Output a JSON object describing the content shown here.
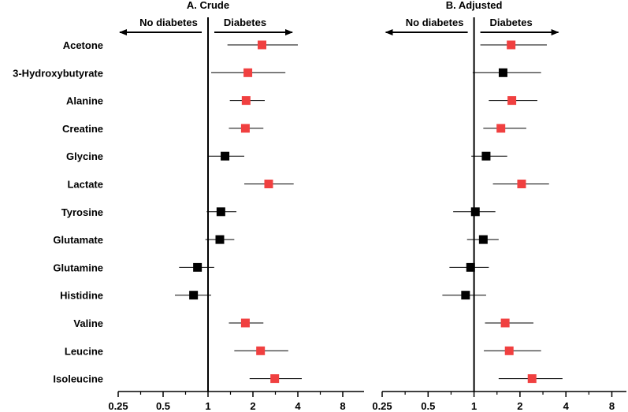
{
  "chart_data": [
    {
      "type": "forest",
      "title": "A. Crude",
      "left_label": "No diabetes",
      "right_label": "Diabetes",
      "x_scale": "log2",
      "xlim": [
        0.25,
        10
      ],
      "reference_line": 1,
      "ticks": [
        0.25,
        0.5,
        1,
        2,
        4,
        8
      ],
      "tick_labels": [
        "0.25",
        "0.5",
        "1",
        "2",
        "4",
        "8"
      ],
      "metabolites": [
        "Acetone",
        "3-Hydroxybutyrate",
        "Alanine",
        "Creatine",
        "Glycine",
        "Lactate",
        "Tyrosine",
        "Glutamate",
        "Glutamine",
        "Histidine",
        "Valine",
        "Leucine",
        "Isoleucine"
      ],
      "estimates": [
        2.3,
        1.85,
        1.8,
        1.78,
        1.3,
        2.55,
        1.22,
        1.2,
        0.85,
        0.8,
        1.78,
        2.25,
        2.8
      ],
      "ci_low": [
        1.35,
        1.05,
        1.4,
        1.38,
        1.0,
        1.75,
        0.98,
        0.96,
        0.64,
        0.6,
        1.38,
        1.5,
        1.9
      ],
      "ci_high": [
        4.0,
        3.3,
        2.4,
        2.35,
        1.75,
        3.75,
        1.55,
        1.5,
        1.1,
        1.05,
        2.35,
        3.45,
        4.25
      ],
      "significant": [
        true,
        true,
        true,
        true,
        false,
        true,
        false,
        false,
        false,
        false,
        true,
        true,
        true
      ],
      "colors": {
        "significant": "#f04040",
        "not_significant": "#000000"
      }
    },
    {
      "type": "forest",
      "title": "B. Adjusted",
      "left_label": "No diabetes",
      "right_label": "Diabetes",
      "x_scale": "log2",
      "xlim": [
        0.25,
        10
      ],
      "reference_line": 1,
      "ticks": [
        0.25,
        0.5,
        1,
        2,
        4,
        8
      ],
      "tick_labels": [
        "0.25",
        "0.5",
        "1",
        "2",
        "4",
        "8"
      ],
      "metabolites": [
        "Acetone",
        "3-Hydroxybutyrate",
        "Alanine",
        "Creatine",
        "Glycine",
        "Lactate",
        "Tyrosine",
        "Glutamate",
        "Glutamine",
        "Histidine",
        "Valine",
        "Leucine",
        "Isoleucine"
      ],
      "estimates": [
        1.75,
        1.55,
        1.77,
        1.5,
        1.2,
        2.05,
        1.02,
        1.15,
        0.95,
        0.88,
        1.6,
        1.7,
        2.4
      ],
      "ci_low": [
        1.1,
        0.98,
        1.25,
        1.15,
        0.96,
        1.33,
        0.73,
        0.9,
        0.69,
        0.62,
        1.18,
        1.16,
        1.45
      ],
      "ci_high": [
        3.0,
        2.75,
        2.6,
        2.2,
        1.65,
        3.1,
        1.38,
        1.45,
        1.25,
        1.2,
        2.45,
        2.75,
        3.8
      ],
      "significant": [
        true,
        false,
        true,
        true,
        false,
        true,
        false,
        false,
        false,
        false,
        true,
        true,
        true
      ],
      "colors": {
        "significant": "#f04040",
        "not_significant": "#000000"
      }
    }
  ]
}
